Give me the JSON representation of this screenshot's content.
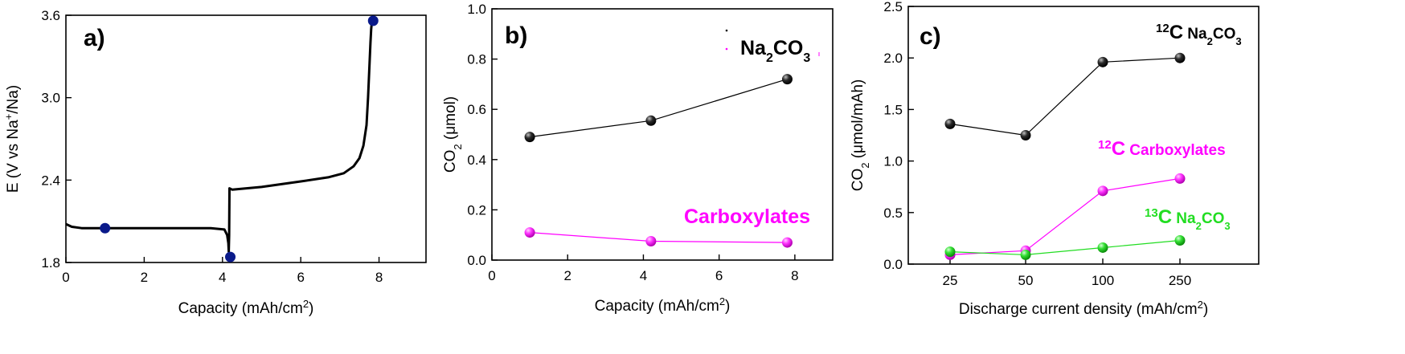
{
  "colors": {
    "black": "#000000",
    "magenta": "#ff00ff",
    "green": "#22dd22",
    "navy": "#0a1a8a"
  },
  "chart_data": [
    {
      "type": "line",
      "panel_label": "a)",
      "xlabel": {
        "main": "Capacity (mAh/cm",
        "sup": "2",
        "tail": ")"
      },
      "ylabel": {
        "main": "E (V vs Na",
        "sup": "+",
        "tail": "/Na)"
      },
      "xlim": [
        0,
        9.2
      ],
      "ylim": [
        1.8,
        3.6
      ],
      "xticks": [
        0,
        2,
        4,
        6,
        8
      ],
      "yticks": [
        1.8,
        2.4,
        3.0,
        3.6
      ],
      "xtick_labels": [
        "0",
        "2",
        "4",
        "6",
        "8"
      ],
      "ytick_labels": [
        "1.8",
        "2.4",
        "3.0",
        "3.6"
      ],
      "series": [
        {
          "color": "#000000",
          "x": [
            0,
            0.15,
            0.4,
            1.0,
            2.0,
            3.0,
            3.7,
            4.05,
            4.12,
            4.15,
            4.16,
            4.17,
            4.18,
            4.25,
            5.0,
            6.0,
            6.7,
            7.1,
            7.35,
            7.5,
            7.6,
            7.68,
            7.72,
            7.75,
            7.78,
            7.8,
            7.82,
            7.85
          ],
          "y": [
            2.08,
            2.06,
            2.05,
            2.05,
            2.05,
            2.05,
            2.05,
            2.04,
            2.0,
            1.94,
            1.88,
            2.0,
            2.34,
            2.33,
            2.35,
            2.39,
            2.42,
            2.45,
            2.5,
            2.56,
            2.65,
            2.8,
            3.0,
            3.2,
            3.4,
            3.5,
            3.56,
            3.57
          ]
        }
      ],
      "markers": {
        "color": "#0a1a8a",
        "x": [
          1.0,
          4.2,
          7.85
        ],
        "y": [
          2.05,
          1.84,
          3.56
        ]
      }
    },
    {
      "type": "line",
      "panel_label": "b)",
      "xlabel": {
        "main": "Capacity (mAh/cm",
        "sup": "2",
        "tail": ")"
      },
      "ylabel": {
        "main": "CO",
        "sub": "2",
        "tail": " (μmol)"
      },
      "xlim": [
        0,
        9
      ],
      "ylim": [
        0,
        1.0
      ],
      "xticks": [
        0,
        2,
        4,
        6,
        8
      ],
      "yticks": [
        0.0,
        0.2,
        0.4,
        0.6,
        0.8,
        1.0
      ],
      "xtick_labels": [
        "0",
        "2",
        "4",
        "6",
        "8"
      ],
      "ytick_labels": [
        "0.0",
        "0.2",
        "0.4",
        "0.6",
        "0.8",
        "1.0"
      ],
      "series": [
        {
          "name": "Na2CO3",
          "color": "#000000",
          "x": [
            1.0,
            4.2,
            7.8
          ],
          "y": [
            0.49,
            0.555,
            0.72
          ]
        },
        {
          "name": "Carboxylates",
          "color": "#ff00ff",
          "x": [
            1.0,
            4.2,
            7.8
          ],
          "y": [
            0.11,
            0.075,
            0.07
          ]
        }
      ],
      "legend": [
        {
          "color": "#000000",
          "main": "Na",
          "sub1": "2",
          "mid": "CO",
          "sub2": "3"
        },
        {
          "color": "#ff00ff"
        }
      ],
      "annotations": [
        {
          "text": "Carboxylates",
          "color": "#ff00ff"
        }
      ]
    },
    {
      "type": "line",
      "panel_label": "c)",
      "xlabel": {
        "main": "Discharge current density (mAh/cm",
        "sup": "2",
        "tail": ")"
      },
      "ylabel": {
        "main": "CO",
        "sub": "2",
        "tail": " (μmol/mAh)"
      },
      "categories": [
        "25",
        "50",
        "100",
        "250"
      ],
      "ylim": [
        0,
        2.5
      ],
      "yticks": [
        0.0,
        0.5,
        1.0,
        1.5,
        2.0,
        2.5
      ],
      "ytick_labels": [
        "0.0",
        "0.5",
        "1.0",
        "1.5",
        "2.0",
        "2.5"
      ],
      "series": [
        {
          "name": "12C Na2CO3",
          "color": "#000000",
          "values": [
            1.36,
            1.25,
            1.96,
            2.0
          ]
        },
        {
          "name": "12C Carboxylates",
          "color": "#ff00ff",
          "values": [
            0.09,
            0.13,
            0.71,
            0.83
          ]
        },
        {
          "name": "13C Na2CO3",
          "color": "#22dd22",
          "values": [
            0.12,
            0.09,
            0.16,
            0.23
          ]
        }
      ],
      "annotations": [
        {
          "color": "#000000",
          "iso": "12",
          "el": "C",
          "main": "Na",
          "sub1": "2",
          "mid": "CO",
          "sub2": "3"
        },
        {
          "color": "#ff00ff",
          "iso": "12",
          "el": "C",
          "rest": "Carboxylates"
        },
        {
          "color": "#22dd22",
          "iso": "13",
          "el": "C",
          "main": "Na",
          "sub1": "2",
          "mid": "CO",
          "sub2": "3"
        }
      ]
    }
  ]
}
